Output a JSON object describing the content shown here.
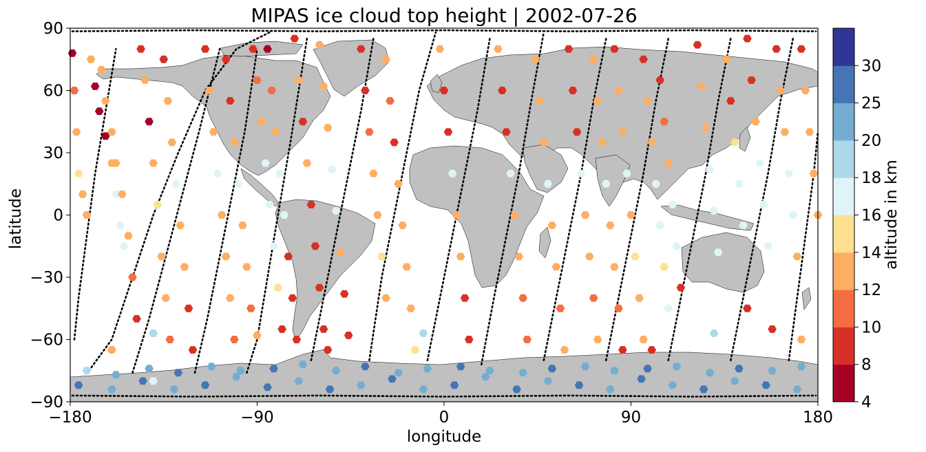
{
  "chart_data": {
    "type": "scatter",
    "title": "MIPAS ice cloud top height | 2002-07-26",
    "xlabel": "longitude",
    "ylabel": "latitude",
    "xlim": [
      -180,
      180
    ],
    "ylim": [
      -90,
      90
    ],
    "x_ticks": [
      "−180",
      "−90",
      "0",
      "90",
      "180"
    ],
    "y_ticks": [
      "90",
      "60",
      "30",
      "0",
      "−30",
      "−60",
      "−90"
    ],
    "x_tick_values": [
      -180,
      -90,
      0,
      90,
      180
    ],
    "y_tick_values": [
      90,
      60,
      30,
      0,
      -30,
      -60,
      -90
    ],
    "colorbar": {
      "label": "altitude in km",
      "bounds": [
        4,
        8,
        10,
        12,
        14,
        16,
        18,
        20,
        25,
        30
      ],
      "tick_labels": [
        "4",
        "8",
        "10",
        "12",
        "14",
        "16",
        "18",
        "20",
        "25",
        "30"
      ],
      "colors": [
        "#a50026",
        "#d73027",
        "#f46d43",
        "#fdae61",
        "#fee090",
        "#e0f3f8",
        "#abd9e9",
        "#74add1",
        "#4575b4",
        "#313695"
      ]
    },
    "land_color": "#c0c0c0",
    "background_map": "world coastlines",
    "orbit_tracks": [
      {
        "lon": [
          -171,
          -160,
          -150,
          -140,
          -128,
          -115,
          -100,
          -84
        ],
        "lat": [
          -75,
          -60,
          -30,
          0,
          30,
          60,
          80,
          88
        ]
      },
      {
        "lon": [
          -178,
          -176,
          -172,
          -168,
          -163,
          -158
        ],
        "lat": [
          -60,
          -40,
          -10,
          20,
          50,
          80
        ]
      },
      {
        "lon": [
          -150,
          -142,
          -134,
          -126,
          -118,
          -108
        ],
        "lat": [
          -76,
          -50,
          -20,
          10,
          40,
          80
        ]
      },
      {
        "lon": [
          -120,
          -114,
          -108,
          -102,
          -96,
          -90
        ],
        "lat": [
          -76,
          -50,
          -20,
          10,
          40,
          80
        ]
      },
      {
        "lon": [
          -95,
          -90,
          -85,
          -80,
          -74,
          -66
        ],
        "lat": [
          -76,
          -60,
          -30,
          0,
          35,
          85
        ]
      },
      {
        "lon": [
          -64,
          -58,
          -52,
          -46,
          -40,
          -34
        ],
        "lat": [
          -70,
          -40,
          -10,
          20,
          50,
          85
        ]
      },
      {
        "lon": [
          -36,
          -30,
          -24,
          -18,
          -12,
          -4
        ],
        "lat": [
          -70,
          -30,
          0,
          30,
          60,
          88
        ]
      },
      {
        "lon": [
          -8,
          -2,
          4,
          10,
          16,
          22
        ],
        "lat": [
          -70,
          -40,
          -10,
          20,
          50,
          85
        ]
      },
      {
        "lon": [
          18,
          24,
          30,
          36,
          42,
          48
        ],
        "lat": [
          -72,
          -40,
          -10,
          20,
          55,
          88
        ]
      },
      {
        "lon": [
          48,
          54,
          60,
          66,
          72,
          78
        ],
        "lat": [
          -70,
          -40,
          -10,
          20,
          55,
          85
        ]
      },
      {
        "lon": [
          78,
          84,
          90,
          96,
          102,
          108
        ],
        "lat": [
          -70,
          -40,
          -10,
          20,
          55,
          85
        ]
      },
      {
        "lon": [
          108,
          114,
          120,
          126,
          132,
          138
        ],
        "lat": [
          -70,
          -40,
          -10,
          20,
          55,
          85
        ]
      },
      {
        "lon": [
          138,
          144,
          150,
          156,
          162,
          168
        ],
        "lat": [
          -70,
          -40,
          -10,
          20,
          55,
          85
        ]
      },
      {
        "lon": [
          166,
          170,
          174,
          178,
          180
        ],
        "lat": [
          -70,
          -40,
          -10,
          20,
          40
        ]
      },
      {
        "lon": [
          -179,
          -120,
          -60,
          0,
          60,
          120,
          179
        ],
        "lat": [
          88.5,
          89,
          88.5,
          89,
          88.5,
          89,
          88.5
        ]
      },
      {
        "lon": [
          -179,
          -120,
          -60,
          0,
          60,
          120,
          179
        ],
        "lat": [
          -87,
          -87.5,
          -87,
          -87.5,
          -87,
          -87.5,
          -87
        ]
      }
    ],
    "tracks": [
      {
        "lon": [
          -179,
          -178,
          -177,
          -176,
          -174,
          -172
        ],
        "lat": [
          78,
          60,
          40,
          20,
          10,
          0
        ],
        "alt": [
          7,
          11,
          13,
          15,
          13,
          12
        ]
      },
      {
        "lon": [
          -170,
          -168,
          -166,
          -163,
          -160,
          -158,
          -156,
          -154
        ],
        "lat": [
          75,
          62,
          50,
          38,
          25,
          10,
          -5,
          -15
        ],
        "alt": [
          12,
          7,
          7,
          7,
          13,
          17,
          17,
          16
        ]
      },
      {
        "lon": [
          -165,
          -163,
          -160,
          -158,
          -155,
          -152,
          -150,
          -148
        ],
        "lat": [
          70,
          55,
          40,
          25,
          10,
          -10,
          -30,
          -50
        ],
        "alt": [
          12,
          13,
          12,
          13,
          13,
          12,
          11,
          9
        ]
      },
      {
        "lon": [
          -146,
          -144,
          -142,
          -140,
          -138,
          -136,
          -134,
          -132
        ],
        "lat": [
          80,
          65,
          45,
          25,
          5,
          -20,
          -40,
          -60
        ],
        "alt": [
          8,
          12,
          7,
          13,
          14,
          13,
          12,
          11
        ]
      },
      {
        "lon": [
          -135,
          -133,
          -131,
          -129,
          -127,
          -125,
          -123,
          -121
        ],
        "lat": [
          75,
          55,
          35,
          15,
          -5,
          -25,
          -45,
          -65
        ],
        "alt": [
          8,
          12,
          13,
          17,
          13,
          12,
          9,
          8
        ]
      },
      {
        "lon": [
          -115,
          -113,
          -111,
          -109,
          -107,
          -105,
          -103,
          -101
        ],
        "lat": [
          80,
          60,
          40,
          20,
          0,
          -20,
          -40,
          -60
        ],
        "alt": [
          8,
          12,
          12,
          16,
          13,
          12,
          12,
          11
        ]
      },
      {
        "lon": [
          -105,
          -103,
          -101,
          -99,
          -97,
          -95,
          -93
        ],
        "lat": [
          75,
          55,
          35,
          15,
          -5,
          -25,
          -45
        ],
        "alt": [
          8,
          9,
          13,
          16,
          13,
          12,
          10
        ]
      },
      {
        "lon": [
          -92,
          -90,
          -88,
          -86,
          -84,
          -82,
          -80,
          -78
        ],
        "lat": [
          80,
          65,
          45,
          25,
          5,
          -15,
          -35,
          -55
        ],
        "alt": [
          8,
          11,
          12,
          17,
          17,
          16,
          14,
          8
        ]
      },
      {
        "lon": [
          -85,
          -83,
          -81,
          -79,
          -77,
          -75,
          -73,
          -71
        ],
        "lat": [
          80,
          60,
          40,
          20,
          0,
          -20,
          -40,
          -60
        ],
        "alt": [
          7,
          11,
          13,
          17,
          17,
          8,
          8,
          8
        ]
      },
      {
        "lon": [
          -72,
          -70,
          -68,
          -66,
          -64,
          -62,
          -60,
          -58,
          -56
        ],
        "lat": [
          85,
          65,
          45,
          25,
          5,
          -15,
          -35,
          -55,
          -65
        ],
        "alt": [
          8,
          12,
          9,
          13,
          8,
          8,
          8,
          8,
          8
        ]
      },
      {
        "lon": [
          -60,
          -58,
          -56,
          -54,
          -52,
          -50,
          -48,
          -46
        ],
        "lat": [
          82,
          62,
          42,
          22,
          2,
          -18,
          -38,
          -58
        ],
        "alt": [
          12,
          12,
          13,
          16,
          17,
          12,
          8,
          8
        ]
      },
      {
        "lon": [
          -40,
          -38,
          -36,
          -34,
          -32,
          -30,
          -28
        ],
        "lat": [
          80,
          60,
          40,
          20,
          0,
          -20,
          -40
        ],
        "alt": [
          8,
          8,
          11,
          12,
          13,
          15,
          12
        ]
      },
      {
        "lon": [
          -28,
          -26,
          -24,
          -22,
          -20,
          -18,
          -16,
          -14
        ],
        "lat": [
          75,
          55,
          35,
          15,
          -5,
          -25,
          -45,
          -65
        ],
        "alt": [
          12,
          11,
          8,
          12,
          13,
          13,
          12,
          15
        ]
      },
      {
        "lon": [
          -2,
          0,
          2,
          4,
          6,
          8,
          10,
          12
        ],
        "lat": [
          80,
          60,
          40,
          20,
          0,
          -20,
          -40,
          -60
        ],
        "alt": [
          12,
          8,
          8,
          17,
          13,
          12,
          8,
          8
        ]
      },
      {
        "lon": [
          26,
          28,
          30,
          32,
          34,
          36,
          38,
          40
        ],
        "lat": [
          80,
          60,
          40,
          20,
          0,
          -20,
          -40,
          -60
        ],
        "alt": [
          12,
          8,
          8,
          17,
          12,
          13,
          11,
          11
        ]
      },
      {
        "lon": [
          44,
          46,
          48,
          50,
          52,
          54,
          56,
          58
        ],
        "lat": [
          75,
          55,
          35,
          15,
          -5,
          -25,
          -45,
          -65
        ],
        "alt": [
          12,
          12,
          13,
          17,
          12,
          12,
          11,
          13
        ]
      },
      {
        "lon": [
          60,
          62,
          64,
          66,
          68,
          70,
          72,
          74
        ],
        "lat": [
          80,
          60,
          40,
          20,
          0,
          -20,
          -40,
          -60
        ],
        "alt": [
          8,
          9,
          8,
          17,
          12,
          12,
          11,
          12
        ]
      },
      {
        "lon": [
          72,
          74,
          76,
          78,
          80,
          82,
          84,
          86
        ],
        "lat": [
          75,
          55,
          35,
          15,
          -5,
          -25,
          -45,
          -65
        ],
        "alt": [
          12,
          12,
          13,
          17,
          13,
          12,
          11,
          8
        ]
      },
      {
        "lon": [
          82,
          84,
          86,
          88,
          90,
          92,
          94,
          96
        ],
        "lat": [
          80,
          60,
          40,
          20,
          0,
          -20,
          -40,
          -60
        ],
        "alt": [
          8,
          12,
          12,
          16,
          13,
          14,
          13,
          12
        ]
      },
      {
        "lon": [
          96,
          98,
          100,
          102,
          104,
          106,
          108
        ],
        "lat": [
          75,
          55,
          35,
          15,
          -5,
          -25,
          -45
        ],
        "alt": [
          8,
          12,
          12,
          17,
          17,
          14,
          16
        ]
      },
      {
        "lon": [
          104,
          106,
          108,
          110,
          112,
          114
        ],
        "lat": [
          65,
          45,
          25,
          5,
          -15,
          -35
        ],
        "alt": [
          8,
          11,
          12,
          17,
          17,
          8
        ]
      },
      {
        "lon": [
          122,
          124,
          126,
          128,
          130,
          132
        ],
        "lat": [
          82,
          62,
          42,
          22,
          2,
          -18
        ],
        "alt": [
          8,
          12,
          12,
          16,
          17,
          16
        ]
      },
      {
        "lon": [
          136,
          138,
          140,
          142,
          144,
          146
        ],
        "lat": [
          75,
          55,
          35,
          15,
          -5,
          -45
        ],
        "alt": [
          12,
          8,
          15,
          17,
          17,
          8
        ]
      },
      {
        "lon": [
          146,
          148,
          150,
          152,
          154,
          156,
          158
        ],
        "lat": [
          85,
          65,
          45,
          25,
          5,
          -15,
          -55
        ],
        "alt": [
          8,
          8,
          12,
          16,
          17,
          16,
          8
        ]
      },
      {
        "lon": [
          160,
          162,
          164,
          166,
          168,
          170,
          172
        ],
        "lat": [
          80,
          60,
          40,
          20,
          0,
          -20,
          -60
        ],
        "alt": [
          8,
          12,
          12,
          16,
          17,
          13,
          12
        ]
      },
      {
        "lon": [
          172,
          174,
          176,
          178,
          180
        ],
        "lat": [
          80,
          60,
          40,
          20,
          0
        ],
        "alt": [
          8,
          12,
          12,
          13,
          12
        ]
      },
      {
        "lon": [
          -176,
          -160,
          -145,
          -130,
          -115,
          -100,
          -85,
          -70,
          -55,
          -40,
          -25,
          -10,
          5,
          20,
          35,
          50,
          65,
          80,
          95,
          110,
          125,
          140,
          155,
          170
        ],
        "lat": [
          -82,
          -84,
          -80,
          -84,
          -82,
          -78,
          -83,
          -80,
          -84,
          -82,
          -79,
          -84,
          -82,
          -78,
          -84,
          -80,
          -82,
          -84,
          -79,
          -82,
          -84,
          -80,
          -82,
          -84
        ],
        "alt": [
          26,
          22,
          26,
          22,
          26,
          22,
          26,
          22,
          26,
          22,
          26,
          22,
          26,
          22,
          26,
          22,
          26,
          22,
          26,
          22,
          26,
          22,
          26,
          22
        ]
      },
      {
        "lon": [
          -172,
          -158,
          -142,
          -128,
          -112,
          -98,
          -82,
          -68,
          -52,
          -38,
          -22,
          -8,
          8,
          22,
          38,
          52,
          68,
          82,
          98,
          112,
          128,
          142,
          158,
          172
        ],
        "lat": [
          -75,
          -77,
          -74,
          -76,
          -73,
          -75,
          -74,
          -72,
          -75,
          -73,
          -76,
          -74,
          -73,
          -75,
          -76,
          -74,
          -73,
          -75,
          -74,
          -73,
          -76,
          -74,
          -75,
          -73
        ],
        "alt": [
          19,
          24,
          22,
          26,
          24,
          22,
          26,
          24,
          22,
          26,
          24,
          22,
          26,
          24,
          22,
          26,
          24,
          22,
          26,
          24,
          22,
          26,
          24,
          22
        ]
      },
      {
        "lon": [
          -160,
          -140,
          -10,
          100,
          130
        ],
        "lat": [
          -65,
          -57,
          -57,
          -65,
          -57
        ],
        "alt": [
          12,
          19,
          19,
          8,
          19
        ]
      },
      {
        "lon": [
          -160,
          -140,
          -90
        ],
        "lat": [
          -65,
          -80,
          -58
        ],
        "alt": [
          12,
          17,
          12
        ]
      }
    ]
  }
}
